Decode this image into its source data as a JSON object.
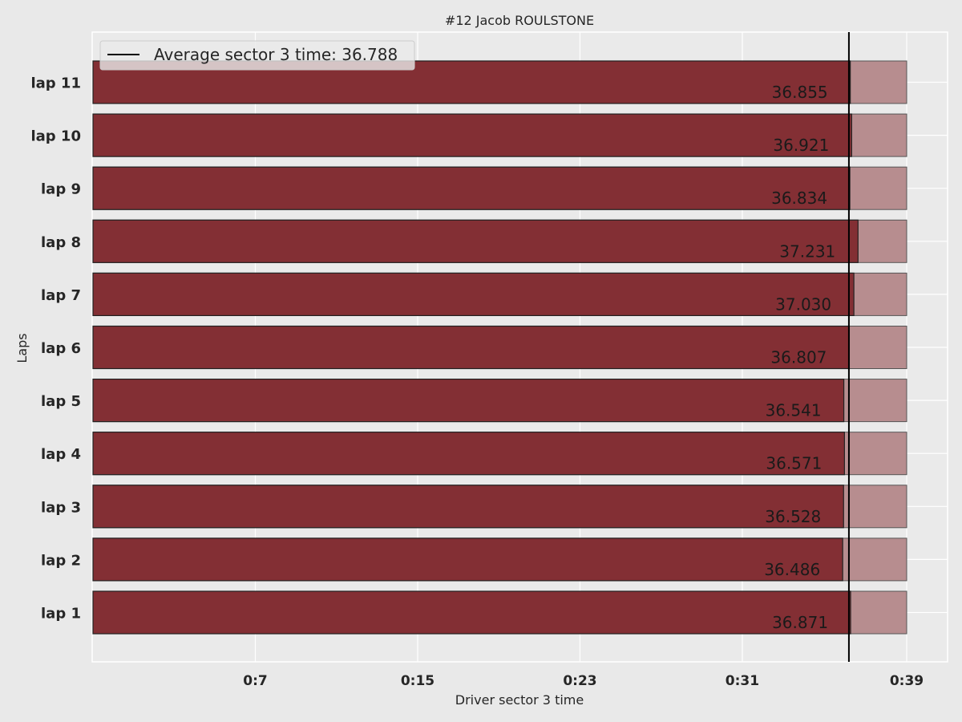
{
  "chart_data": {
    "type": "bar",
    "orientation": "horizontal",
    "title": "#12  Jacob ROULSTONE",
    "xlabel": "Driver sector 3 time",
    "ylabel": "Laps",
    "categories": [
      "lap 1",
      "lap 2",
      "lap 3",
      "lap 4",
      "lap 5",
      "lap 6",
      "lap 7",
      "lap 8",
      "lap 9",
      "lap 10",
      "lap 11"
    ],
    "series": [
      {
        "values": [
          36.871,
          36.486,
          36.528,
          36.571,
          36.541,
          36.807,
          37.03,
          37.231,
          36.834,
          36.921,
          36.855
        ],
        "labels": [
          "36.871",
          "36.486",
          "36.528",
          "36.571",
          "36.541",
          "36.807",
          "37.030",
          "37.231",
          "36.834",
          "36.921",
          "36.855"
        ],
        "color": "#832f34"
      }
    ],
    "background_bar_value": 39.6,
    "background_bar_color": "#b78d8f",
    "average_line": {
      "value": 36.788,
      "label": "Average sector 3 time: 36.788",
      "color": "#000000"
    },
    "xticks": [
      7.9,
      15.8,
      23.7,
      31.6,
      39.6
    ],
    "xtick_labels": [
      "0:7",
      "0:15",
      "0:23",
      "0:31",
      "0:39"
    ],
    "xlim": [
      0,
      41.6
    ],
    "grid": true,
    "legend_position": "upper-left",
    "colors": {
      "background": "#e9e9e9",
      "plot_background": "#eaeaea",
      "grid": "#ffffff"
    }
  }
}
